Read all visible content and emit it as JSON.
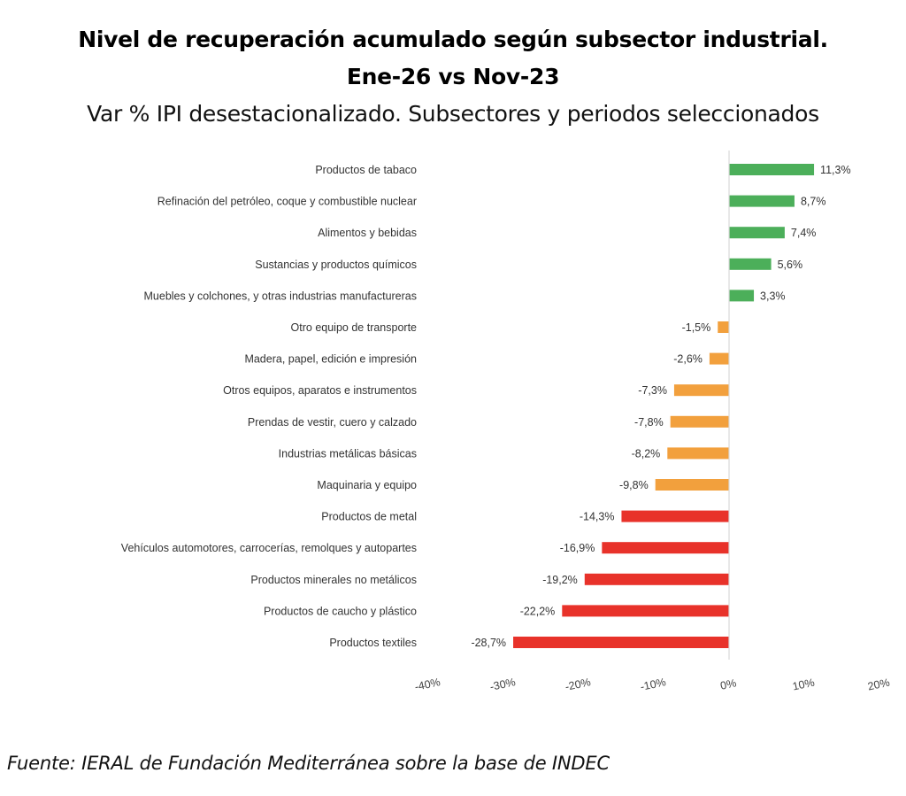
{
  "header": {
    "title_line1": "Nivel de recuperación acumulado según subsector industrial.",
    "title_line2": "Ene-26 vs Nov-23",
    "subtitle": "Var % IPI desestacionalizado. Subsectores y periodos seleccionados"
  },
  "footer": {
    "source": "Fuente: IERAL de Fundación Mediterránea sobre la base de INDEC"
  },
  "colors": {
    "positive": "#4CAF5A",
    "moderate_negative": "#F2A03D",
    "strong_negative": "#E8322A",
    "axis": "#d9d9d9"
  },
  "chart_data": {
    "type": "bar",
    "orientation": "horizontal",
    "title": "Nivel de recuperación acumulado según subsector industrial. Ene-26 vs Nov-23",
    "subtitle": "Var % IPI desestacionalizado. Subsectores y periodos seleccionados",
    "xlabel": "",
    "ylabel": "",
    "xlim": [
      -40,
      20
    ],
    "x_ticks": [
      -40,
      -30,
      -20,
      -10,
      0,
      10,
      20
    ],
    "x_tick_labels": [
      "-40%",
      "-30%",
      "-20%",
      "-10%",
      "0%",
      "10%",
      "20%"
    ],
    "grid": false,
    "legend": "none",
    "categories": [
      "Productos de tabaco",
      "Refinación del petróleo, coque y combustible nuclear",
      "Alimentos y bebidas",
      "Sustancias y productos químicos",
      "Muebles y colchones, y otras industrias manufactureras",
      "Otro equipo de transporte",
      "Madera, papel, edición e impresión",
      "Otros equipos, aparatos e instrumentos",
      "Prendas de vestir, cuero y calzado",
      "Industrias metálicas básicas",
      "Maquinaria y equipo",
      "Productos de metal",
      "Vehículos automotores, carrocerías, remolques y autopartes",
      "Productos minerales no metálicos",
      "Productos de caucho y plástico",
      "Productos textiles"
    ],
    "values": [
      11.3,
      8.7,
      7.4,
      5.6,
      3.3,
      -1.5,
      -2.6,
      -7.3,
      -7.8,
      -8.2,
      -9.8,
      -14.3,
      -16.9,
      -19.2,
      -22.2,
      -28.7
    ],
    "value_labels": [
      "11,3%",
      "8,7%",
      "7,4%",
      "5,6%",
      "3,3%",
      "-1,5%",
      "-2,6%",
      "-7,3%",
      "-7,8%",
      "-8,2%",
      "-9,8%",
      "-14,3%",
      "-16,9%",
      "-19,2%",
      "-22,2%",
      "-28,7%"
    ],
    "bar_color_groups": [
      "positive",
      "positive",
      "positive",
      "positive",
      "positive",
      "moderate_negative",
      "moderate_negative",
      "moderate_negative",
      "moderate_negative",
      "moderate_negative",
      "moderate_negative",
      "strong_negative",
      "strong_negative",
      "strong_negative",
      "strong_negative",
      "strong_negative"
    ]
  }
}
